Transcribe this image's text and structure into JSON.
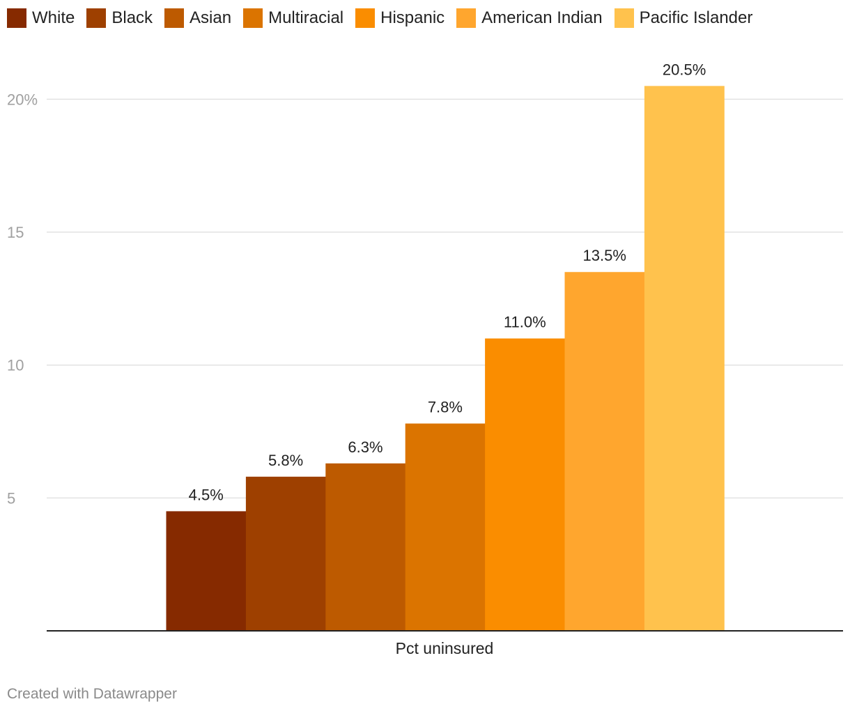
{
  "chart_data": {
    "type": "bar",
    "categories": [
      "Pct uninsured"
    ],
    "series": [
      {
        "name": "White",
        "values": [
          4.5
        ],
        "color": "#862a00"
      },
      {
        "name": "Black",
        "values": [
          5.8
        ],
        "color": "#9e4000"
      },
      {
        "name": "Asian",
        "values": [
          6.3
        ],
        "color": "#bd5a00"
      },
      {
        "name": "Multiracial",
        "values": [
          7.8
        ],
        "color": "#db7400"
      },
      {
        "name": "Hispanic",
        "values": [
          11.0
        ],
        "color": "#fa8d00"
      },
      {
        "name": "American Indian",
        "values": [
          13.5
        ],
        "color": "#ffa62e"
      },
      {
        "name": "Pacific Islander",
        "values": [
          20.5
        ],
        "color": "#ffc24d"
      }
    ],
    "data_labels": [
      "4.5%",
      "5.8%",
      "6.3%",
      "7.8%",
      "11.0%",
      "13.5%",
      "20.5%"
    ],
    "title": "",
    "xlabel": "",
    "ylabel": "",
    "ylim": [
      0,
      20.5
    ],
    "yticks": [
      5,
      10,
      15,
      20
    ],
    "ytick_labels": [
      "5",
      "10",
      "15",
      "20%"
    ],
    "grid": true,
    "legend_position": "top-left"
  },
  "footer": {
    "credit": "Created with Datawrapper"
  }
}
